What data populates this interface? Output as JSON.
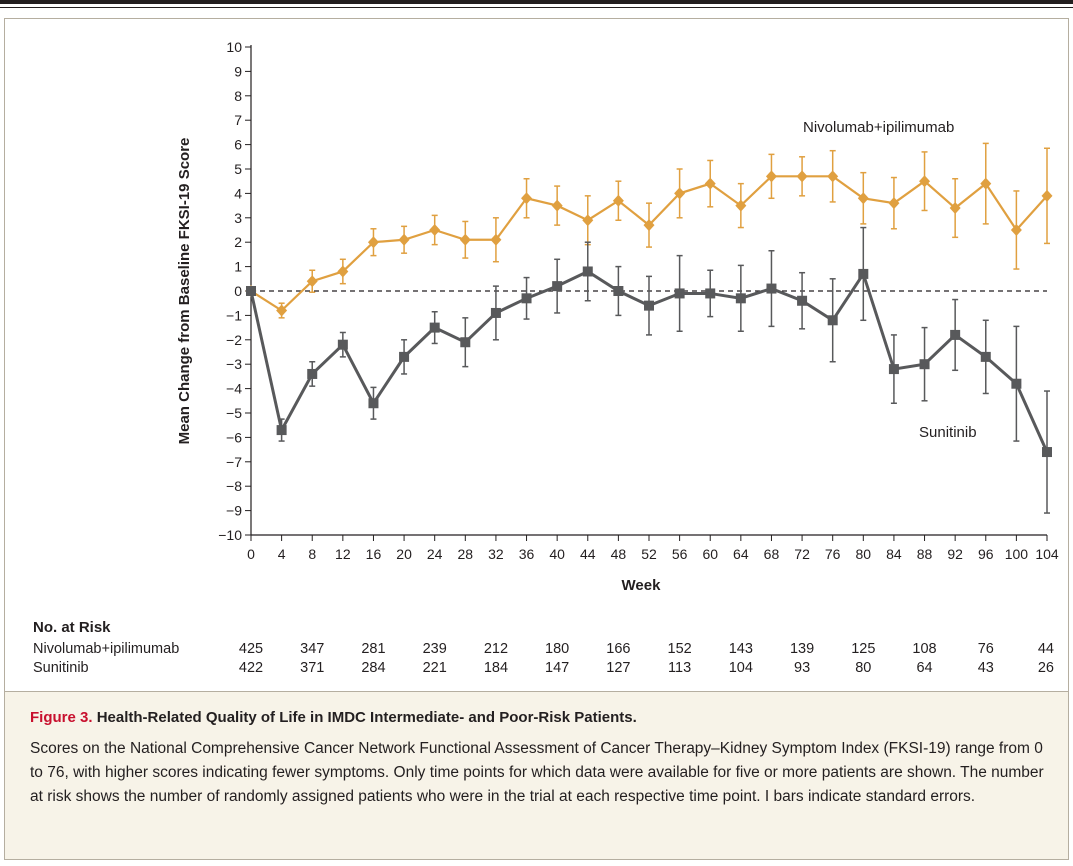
{
  "chart_data": {
    "type": "line",
    "ylabel": "Mean Change from Baseline FKSI-19 Score",
    "xlabel": "Week",
    "xlim": [
      0,
      104
    ],
    "ylim": [
      -10,
      10
    ],
    "x_ticks": [
      0,
      4,
      8,
      12,
      16,
      20,
      24,
      28,
      32,
      36,
      40,
      44,
      48,
      52,
      56,
      60,
      64,
      68,
      72,
      76,
      80,
      84,
      88,
      92,
      96,
      100,
      104
    ],
    "y_ticks": [
      -10,
      -9,
      -8,
      -7,
      -6,
      -5,
      -4,
      -3,
      -2,
      -1,
      0,
      1,
      2,
      3,
      4,
      5,
      6,
      7,
      8,
      9,
      10
    ],
    "reference_line": 0,
    "grid": false,
    "error_bars": "standard error",
    "series": [
      {
        "name": "Nivolumab+ipilimumab",
        "color": "#e0a040",
        "marker": "diamond",
        "x": [
          0,
          4,
          8,
          12,
          16,
          20,
          24,
          28,
          32,
          36,
          40,
          44,
          48,
          52,
          56,
          60,
          64,
          68,
          72,
          76,
          80,
          84,
          88,
          92,
          96,
          100,
          104
        ],
        "y": [
          0,
          -0.8,
          0.4,
          0.8,
          2.0,
          2.1,
          2.5,
          2.1,
          2.1,
          3.8,
          3.5,
          2.9,
          3.7,
          2.7,
          4.0,
          4.4,
          3.5,
          4.7,
          4.7,
          4.7,
          3.8,
          3.6,
          4.5,
          3.4,
          4.4,
          2.5,
          3.9
        ],
        "err": [
          0,
          0.3,
          0.45,
          0.5,
          0.55,
          0.55,
          0.6,
          0.75,
          0.9,
          0.8,
          0.8,
          1.0,
          0.8,
          0.9,
          1.0,
          0.95,
          0.9,
          0.9,
          0.8,
          1.05,
          1.05,
          1.05,
          1.2,
          1.2,
          1.65,
          1.6,
          1.95
        ]
      },
      {
        "name": "Sunitinib",
        "color": "#58595b",
        "marker": "square",
        "x": [
          0,
          4,
          8,
          12,
          16,
          20,
          24,
          28,
          32,
          36,
          40,
          44,
          48,
          52,
          56,
          60,
          64,
          68,
          72,
          76,
          80,
          84,
          88,
          92,
          96,
          100,
          104
        ],
        "y": [
          0,
          -5.7,
          -3.4,
          -2.2,
          -4.6,
          -2.7,
          -1.5,
          -2.1,
          -0.9,
          -0.3,
          0.2,
          0.8,
          0.0,
          -0.6,
          -0.1,
          -0.1,
          -0.3,
          0.1,
          -0.4,
          -1.2,
          0.7,
          -3.2,
          -3.0,
          -1.8,
          -2.7,
          -3.8,
          -6.6
        ],
        "err": [
          0,
          0.45,
          0.5,
          0.5,
          0.65,
          0.7,
          0.65,
          1.0,
          1.1,
          0.85,
          1.1,
          1.2,
          1.0,
          1.2,
          1.55,
          0.95,
          1.35,
          1.55,
          1.15,
          1.7,
          1.9,
          1.4,
          1.5,
          1.45,
          1.5,
          2.35,
          2.5
        ]
      }
    ],
    "risk_table": {
      "title": "No. at Risk",
      "weeks": [
        0,
        8,
        16,
        24,
        32,
        40,
        48,
        56,
        64,
        72,
        80,
        88,
        96,
        104
      ],
      "rows": [
        {
          "label": "Nivolumab+ipilimumab",
          "counts": [
            "425",
            "347",
            "281",
            "239",
            "212",
            "180",
            "166",
            "152",
            "143",
            "139",
            "125",
            "108",
            "76",
            "44"
          ]
        },
        {
          "label": "Sunitinib",
          "counts": [
            "422",
            "371",
            "284",
            "221",
            "184",
            "147",
            "127",
            "113",
            "104",
            "93",
            "80",
            "64",
            "43",
            "26"
          ]
        }
      ]
    }
  },
  "caption": {
    "figure_label": "Figure 3.",
    "title": "Health-Related Quality of Life in IMDC Intermediate- and Poor-Risk Patients.",
    "body": "Scores on the National Comprehensive Cancer Network Functional Assessment of Cancer Therapy–Kidney Symptom Index (FKSI-19) range from 0 to 76, with higher scores indicating fewer symptoms. Only time points for which data were available for five or more patients are shown. The number at risk shows the number of randomly assigned patients who were in the trial at each respective time point. I bars indicate standard errors."
  }
}
